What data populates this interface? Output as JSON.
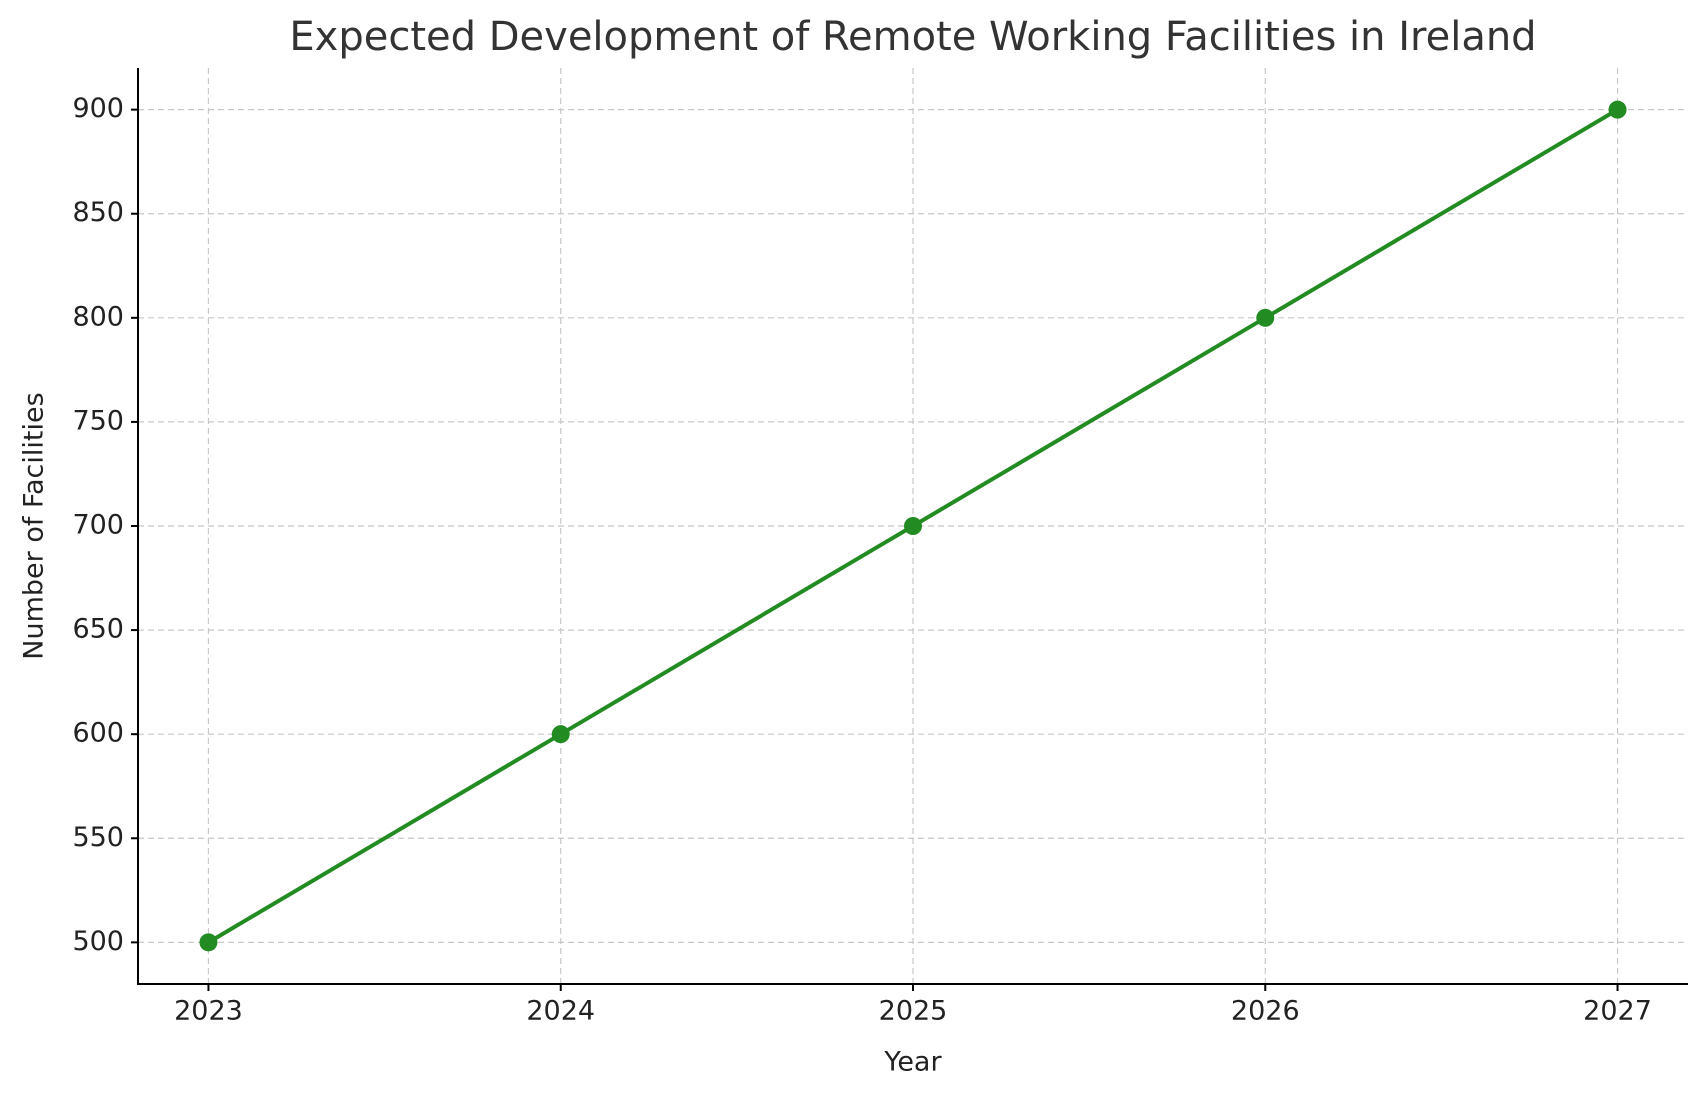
{
  "chart_data": {
    "type": "line",
    "title": "Expected Development of Remote Working Facilities in Ireland",
    "x_label": "Year",
    "y_label": "Number of Facilities",
    "x": [
      2023,
      2024,
      2025,
      2026,
      2027
    ],
    "series": [
      {
        "name": "Number of Facilities",
        "color": "#228b22",
        "values": [
          500,
          600,
          700,
          800,
          900
        ]
      }
    ],
    "xlim": [
      2022.8,
      2027.2
    ],
    "xticks": [
      2023,
      2024,
      2025,
      2026,
      2027
    ],
    "ylim": [
      480,
      920
    ],
    "yticks": [
      500,
      550,
      600,
      650,
      700,
      750,
      800,
      850,
      900
    ],
    "grid": true
  }
}
